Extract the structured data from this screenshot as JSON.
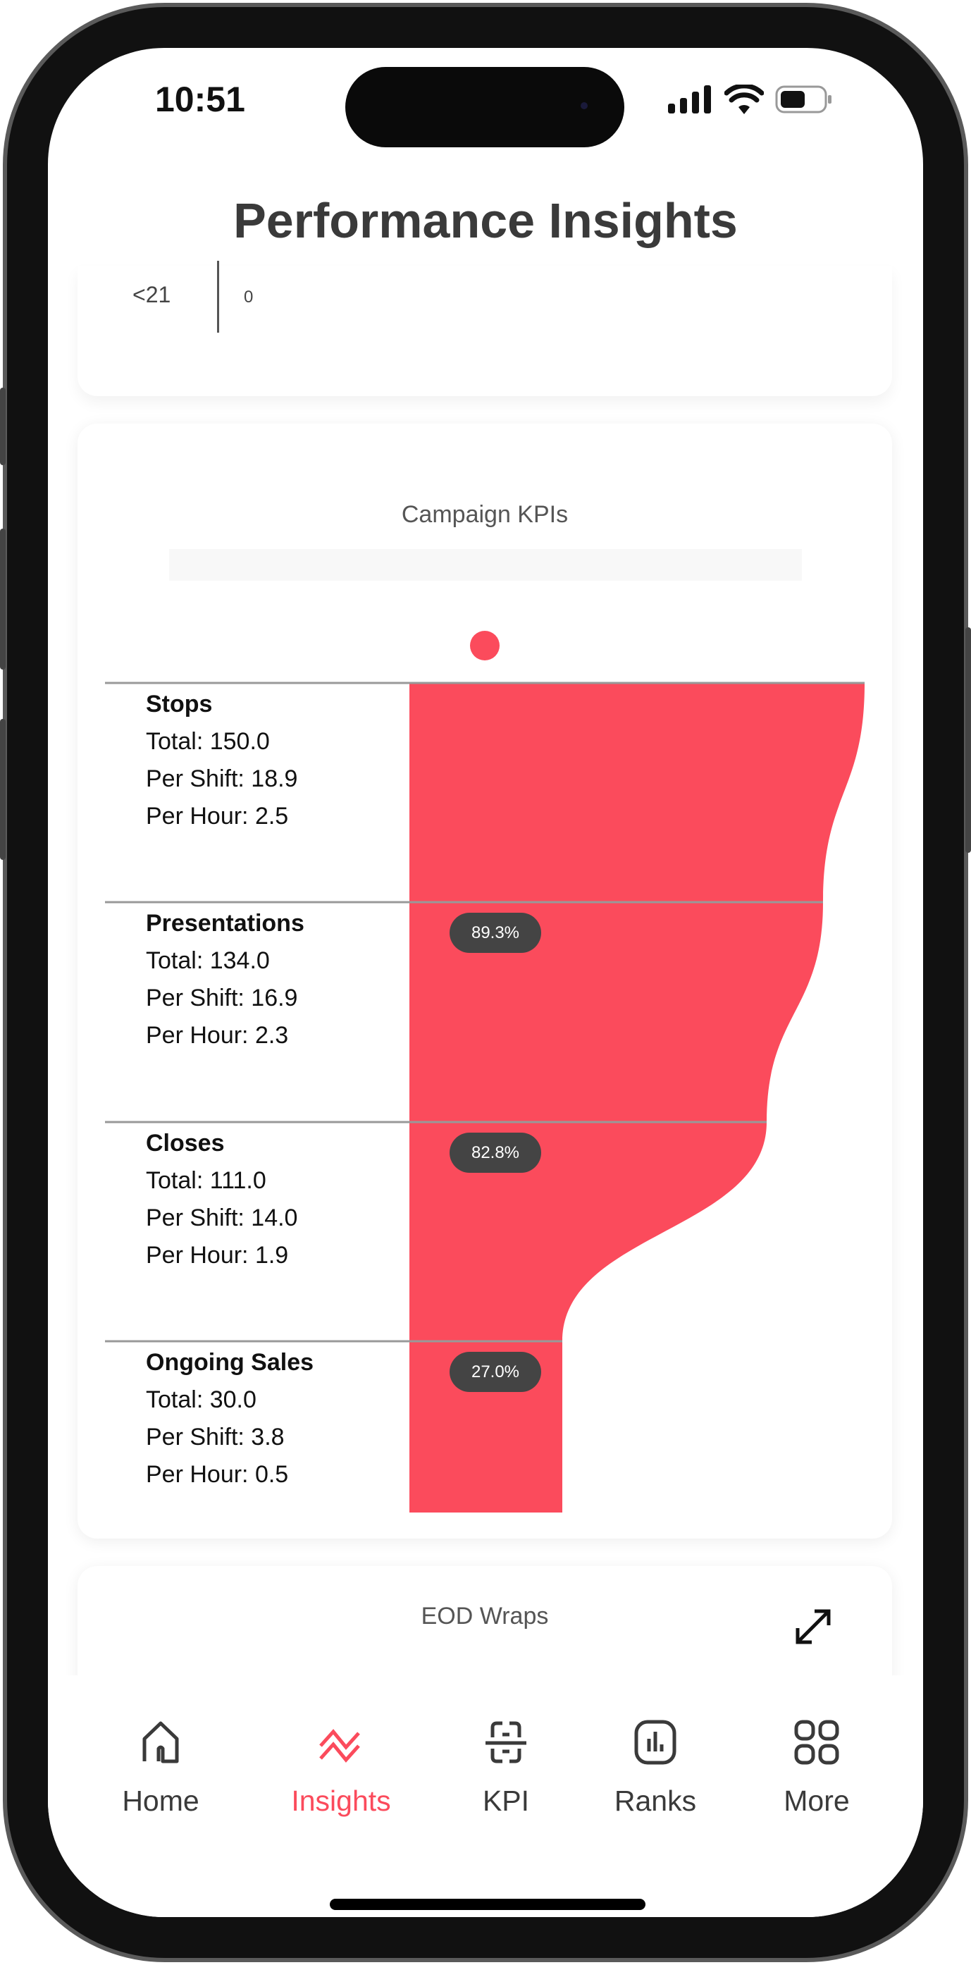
{
  "status": {
    "time": "10:51",
    "icons": [
      "cellular-signal-icon",
      "wifi-icon",
      "battery-icon"
    ]
  },
  "header": {
    "title": "Performance Insights"
  },
  "top_card": {
    "row_label": "<21",
    "row_value": "0"
  },
  "campaign_kpis": {
    "title": "Campaign KPIs",
    "accent": "#fb4b5c",
    "stages": [
      {
        "name": "Stops",
        "total": "Total: 150.0",
        "per_shift": "Per Shift: 18.9",
        "per_hour": "Per Hour: 2.5",
        "conversion": ""
      },
      {
        "name": "Presentations",
        "total": "Total: 134.0",
        "per_shift": "Per Shift: 16.9",
        "per_hour": "Per Hour: 2.3",
        "conversion": "89.3%"
      },
      {
        "name": "Closes",
        "total": "Total: 111.0",
        "per_shift": "Per Shift: 14.0",
        "per_hour": "Per Hour: 1.9",
        "conversion": "82.8%"
      },
      {
        "name": "Ongoing Sales",
        "total": "Total: 30.0",
        "per_shift": "Per Shift: 3.8",
        "per_hour": "Per Hour: 0.5",
        "conversion": "27.0%"
      }
    ]
  },
  "eod_card": {
    "title": "EOD Wraps",
    "expand_icon": "expand-arrows-icon"
  },
  "nav": {
    "active_color": "#fb4b5c",
    "items": [
      {
        "label": "Home",
        "icon": "home-icon"
      },
      {
        "label": "Insights",
        "icon": "insights-icon",
        "active": true
      },
      {
        "label": "KPI",
        "icon": "kpi-scan-icon"
      },
      {
        "label": "Ranks",
        "icon": "ranks-chart-icon"
      },
      {
        "label": "More",
        "icon": "grid-more-icon"
      }
    ]
  }
}
